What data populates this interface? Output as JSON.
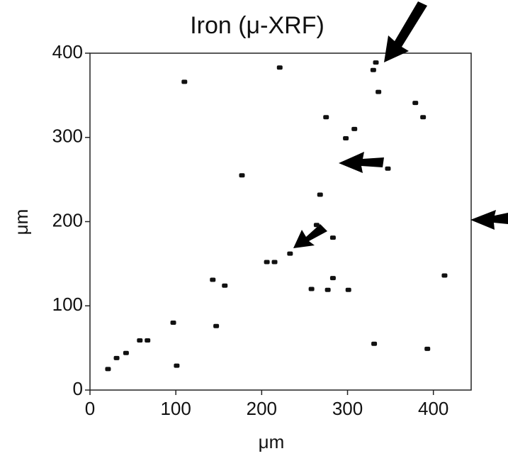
{
  "chart_data": {
    "type": "scatter",
    "title": "Iron (μ-XRF)",
    "x_label": "μm",
    "y_label": "μm",
    "xlim": [
      0,
      444
    ],
    "ylim": [
      0,
      400
    ],
    "xticks": [
      0,
      100,
      200,
      300,
      400
    ],
    "yticks": [
      0,
      100,
      200,
      300,
      400
    ],
    "color": "#111111",
    "x": [
      21,
      31,
      42,
      58,
      67,
      97,
      101,
      147,
      157,
      177,
      206,
      215,
      233,
      258,
      264,
      268,
      298,
      308,
      330,
      333,
      347,
      331,
      393,
      413,
      275,
      221,
      110,
      143,
      277,
      301,
      283,
      388,
      336,
      379,
      283
    ],
    "values": [
      25,
      38,
      44,
      59,
      59,
      80,
      29,
      76,
      124,
      255,
      152,
      152,
      162,
      120,
      196,
      232,
      299,
      310,
      380,
      389,
      263,
      55,
      49,
      136,
      324,
      383,
      366,
      131,
      119,
      119,
      133,
      324,
      354,
      341,
      181
    ]
  }
}
